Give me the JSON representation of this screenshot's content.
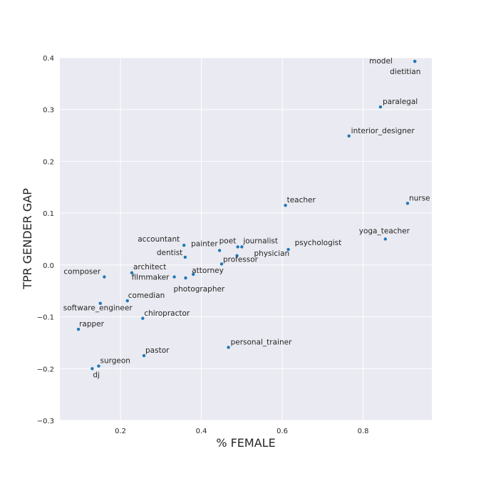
{
  "chart_data": {
    "type": "scatter",
    "xlabel": "% FEMALE",
    "ylabel": "TPR GENDER GAP",
    "xlim": [
      0.05,
      0.97
    ],
    "ylim": [
      -0.3,
      0.4
    ],
    "xticks": [
      "0.2",
      "0.4",
      "0.6",
      "0.8"
    ],
    "yticks": [
      "−0.3",
      "−0.2",
      "−0.1",
      "0.0",
      "0.1",
      "0.2",
      "0.3",
      "0.4"
    ],
    "grid": true,
    "colors": {
      "point": "#1f77b4",
      "plot_bg": "#eaeaf2",
      "grid": "#ffffff"
    },
    "points": [
      {
        "label": "model",
        "x": 0.928,
        "y": 0.393
      },
      {
        "label": "dietitian",
        "x": 0.928,
        "y": 0.393
      },
      {
        "label": "paralegal",
        "x": 0.843,
        "y": 0.305
      },
      {
        "label": "interior_designer",
        "x": 0.765,
        "y": 0.249
      },
      {
        "label": "teacher",
        "x": 0.608,
        "y": 0.115
      },
      {
        "label": "nurse",
        "x": 0.91,
        "y": 0.119
      },
      {
        "label": "yoga_teacher",
        "x": 0.855,
        "y": 0.05
      },
      {
        "label": "accountant",
        "x": 0.357,
        "y": 0.038
      },
      {
        "label": "poet",
        "x": 0.49,
        "y": 0.035
      },
      {
        "label": "journalist",
        "x": 0.5,
        "y": 0.035
      },
      {
        "label": "psychologist",
        "x": 0.615,
        "y": 0.03
      },
      {
        "label": "dentist",
        "x": 0.36,
        "y": 0.015
      },
      {
        "label": "painter",
        "x": 0.445,
        "y": 0.028
      },
      {
        "label": "physician",
        "x": 0.488,
        "y": 0.018
      },
      {
        "label": "professor",
        "x": 0.45,
        "y": 0.002
      },
      {
        "label": "composer",
        "x": 0.16,
        "y": -0.023
      },
      {
        "label": "architect",
        "x": 0.228,
        "y": -0.015
      },
      {
        "label": "filmmaker",
        "x": 0.333,
        "y": -0.023
      },
      {
        "label": "attorney",
        "x": 0.38,
        "y": -0.018
      },
      {
        "label": "photographer",
        "x": 0.361,
        "y": -0.025
      },
      {
        "label": "comedian",
        "x": 0.217,
        "y": -0.069
      },
      {
        "label": "software_engineer",
        "x": 0.15,
        "y": -0.074
      },
      {
        "label": "chiropractor",
        "x": 0.255,
        "y": -0.103
      },
      {
        "label": "rapper",
        "x": 0.096,
        "y": -0.124
      },
      {
        "label": "personal_trainer",
        "x": 0.467,
        "y": -0.159
      },
      {
        "label": "pastor",
        "x": 0.258,
        "y": -0.175
      },
      {
        "label": "surgeon",
        "x": 0.146,
        "y": -0.195
      },
      {
        "label": "dj",
        "x": 0.13,
        "y": -0.2
      }
    ]
  }
}
